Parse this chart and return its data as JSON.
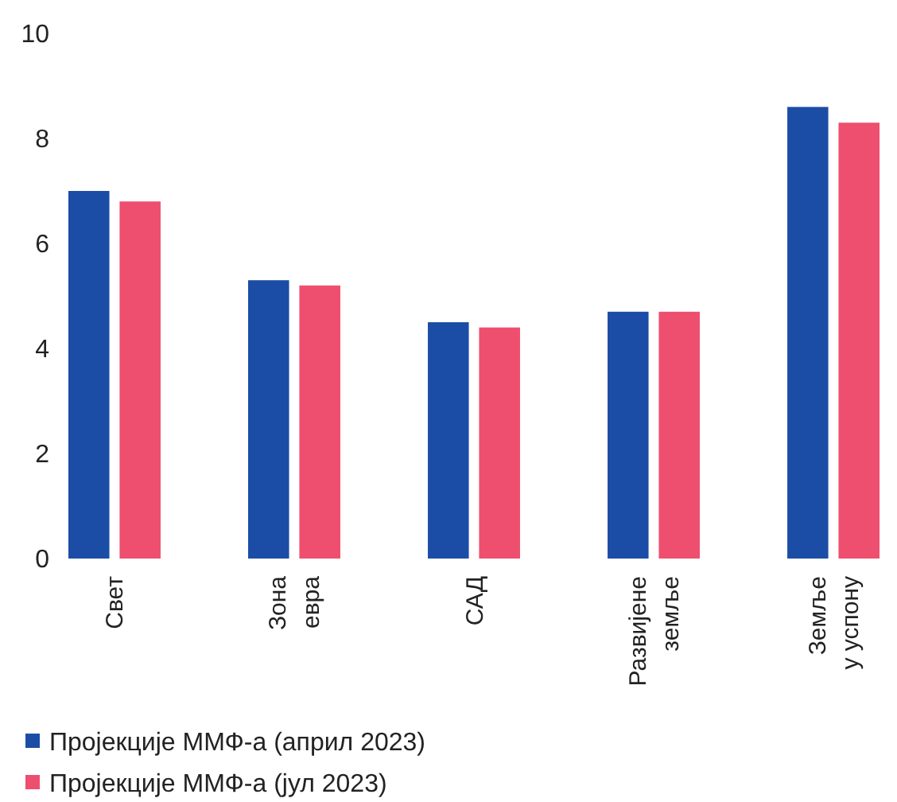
{
  "chart_data": {
    "type": "bar",
    "categories": [
      "Свет",
      "Зона евра",
      "САД",
      "Развијене земље",
      "Земље у успону"
    ],
    "series": [
      {
        "name": "Пројекције ММФ-а (април 2023)",
        "color": "#1c4da6",
        "values": [
          7.0,
          5.3,
          4.5,
          4.7,
          8.6
        ]
      },
      {
        "name": "Пројекције ММФ-а (јул 2023)",
        "color": "#ee4f6e",
        "values": [
          6.8,
          5.2,
          4.4,
          4.7,
          8.3
        ]
      }
    ],
    "ylim": [
      0,
      10
    ],
    "yticks": [
      0,
      2,
      4,
      6,
      8,
      10
    ],
    "legend": "bottom left"
  }
}
